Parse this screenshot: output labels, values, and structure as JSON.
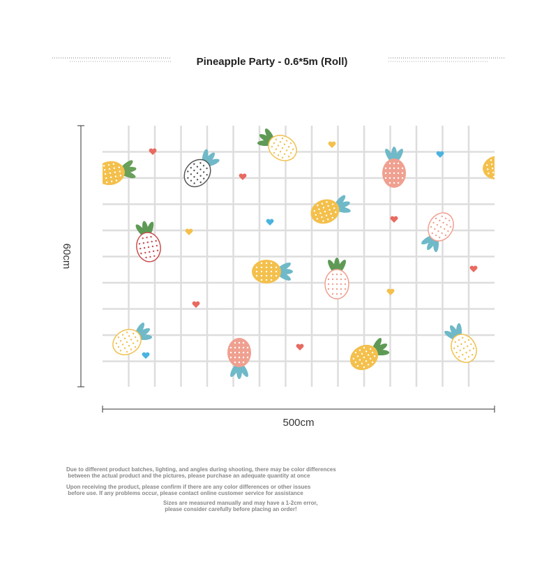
{
  "header": {
    "title": "Pineapple Party - 0.6*5m (Roll)"
  },
  "dimensions": {
    "height": "60cm",
    "width": "500cm"
  },
  "notes": [
    [
      "Due to different product batches, lighting, and angles during shooting, there may be color differences",
      " between the actual product and the pictures, please purchase an adequate quantity at once"
    ],
    [
      "Upon receiving the product, please confirm if there are any color differences or other issues",
      " before use. If any problems occur, please contact online customer service for assistance"
    ],
    [
      "Sizes are measured manually and may have a 1-2cm error,",
      " please consider carefully before placing an order!"
    ]
  ]
}
